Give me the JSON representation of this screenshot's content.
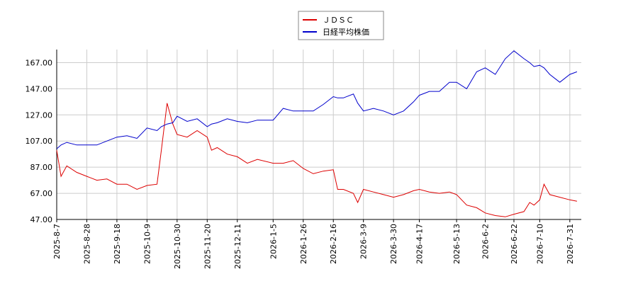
{
  "chart_data": {
    "type": "line",
    "x": [
      "2025-8-7",
      "2025-8-10",
      "2025-8-14",
      "2025-8-21",
      "2025-8-28",
      "2025-9-4",
      "2025-9-11",
      "2025-9-18",
      "2025-9-25",
      "2025-10-2",
      "2025-10-9",
      "2025-10-16",
      "2025-10-19",
      "2025-10-23",
      "2025-10-27",
      "2025-10-30",
      "2025-11-6",
      "2025-11-13",
      "2025-11-20",
      "2025-11-23",
      "2025-11-27",
      "2025-12-4",
      "2025-12-11",
      "2025-12-18",
      "2025-12-25",
      "2026-1-5",
      "2026-1-12",
      "2026-1-19",
      "2026-1-26",
      "2026-2-2",
      "2026-2-9",
      "2026-2-16",
      "2026-2-19",
      "2026-2-23",
      "2026-3-2",
      "2026-3-5",
      "2026-3-9",
      "2026-3-16",
      "2026-3-23",
      "2026-3-30",
      "2026-4-6",
      "2026-4-13",
      "2026-4-17",
      "2026-4-24",
      "2026-5-1",
      "2026-5-8",
      "2026-5-13",
      "2026-5-20",
      "2026-5-27",
      "2026-6-2",
      "2026-6-9",
      "2026-6-16",
      "2026-6-22",
      "2026-6-29",
      "2026-7-3",
      "2026-7-6",
      "2026-7-10",
      "2026-7-13",
      "2026-7-17",
      "2026-7-24",
      "2026-7-31",
      "2026-8-5"
    ],
    "series": [
      {
        "name": "ＪＤＳＣ",
        "color": "#dd0000",
        "values": [
          100,
          80,
          88,
          83,
          80,
          77,
          78,
          74,
          74,
          70,
          73,
          74,
          100,
          136,
          120,
          112,
          110,
          115,
          110,
          100,
          102,
          97,
          95,
          90,
          93,
          90,
          90,
          92,
          86,
          82,
          84,
          85,
          70,
          70,
          67,
          60,
          70,
          68,
          66,
          64,
          66,
          69,
          70,
          68,
          67,
          68,
          66,
          58,
          56,
          52,
          50,
          49,
          51,
          53,
          60,
          58,
          62,
          74,
          66,
          64,
          62,
          61
        ]
      },
      {
        "name": "日経平均株価",
        "color": "#0000cc",
        "values": [
          101,
          104,
          106,
          104,
          104,
          104,
          107,
          110,
          111,
          109,
          117,
          115,
          118,
          120,
          121,
          126,
          122,
          124,
          118,
          120,
          121,
          124,
          122,
          121,
          123,
          123,
          132,
          130,
          130,
          130,
          135,
          141,
          140,
          140,
          143,
          136,
          130,
          132,
          130,
          127,
          130,
          137,
          142,
          145,
          145,
          152,
          152,
          147,
          160,
          163,
          158,
          170,
          176,
          170,
          167,
          164,
          165,
          163,
          158,
          152,
          158,
          160
        ]
      }
    ],
    "xlim": [
      "2025-8-7",
      "2026-8-8"
    ],
    "xticks": [
      "2025-8-7",
      "2025-8-28",
      "2025-9-18",
      "2025-10-9",
      "2025-10-30",
      "2025-11-20",
      "2025-12-11",
      "2026-1-5",
      "2026-1-26",
      "2026-2-16",
      "2026-3-9",
      "2026-3-30",
      "2026-4-17",
      "2026-5-13",
      "2026-6-2",
      "2026-6-22",
      "2026-7-10",
      "2026-7-31"
    ],
    "ylim": [
      47,
      177
    ],
    "yticks": [
      {
        "value": 47,
        "label": "47.00"
      },
      {
        "value": 67,
        "label": "67.00"
      },
      {
        "value": 87,
        "label": "87.00"
      },
      {
        "value": 107,
        "label": "107.00"
      },
      {
        "value": 127,
        "label": "127.00"
      },
      {
        "value": 147,
        "label": "147.00"
      },
      {
        "value": 167,
        "label": "167.00"
      }
    ],
    "grid": true
  }
}
